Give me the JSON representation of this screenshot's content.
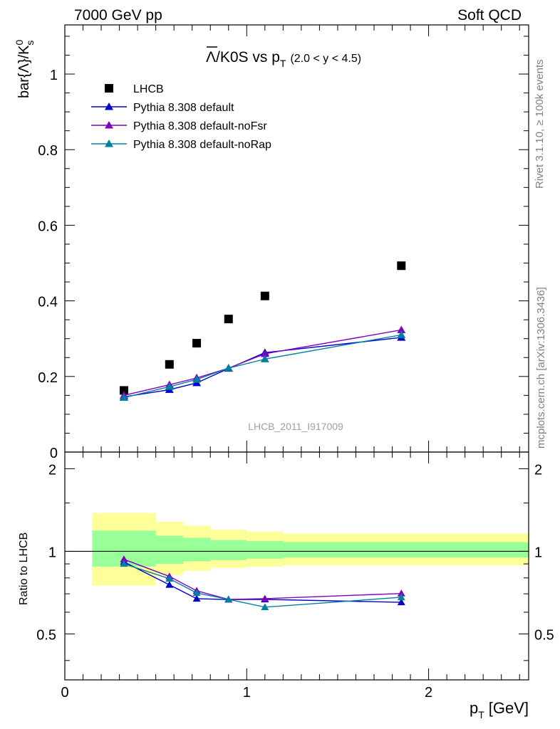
{
  "header": {
    "energy_label": "7000 GeV pp",
    "process_label": "Soft QCD",
    "rivet_label": "Rivet 3.1.10, ≥ 100k events",
    "mcplots_label": "mcplots.cern.ch [arXiv:1306.3436]",
    "analysis_label": "LHCB_2011_I917009"
  },
  "chart_data": [
    {
      "type": "scatter",
      "title": {
        "main": "Λ/K0S vs p",
        "sub": "T",
        "cut": "(2.0 < y < 4.5)"
      },
      "ylabel": "bar{Λ}/K⁰s",
      "ylabel_parts": {
        "main": "bar{Λ}/K",
        "sup": "0",
        "sub": "s"
      },
      "xlim": [
        0,
        2.55
      ],
      "ylim": [
        0,
        1.13
      ],
      "x_ticks": [
        0,
        1,
        2
      ],
      "y_ticks": [
        0,
        0.2,
        0.4,
        0.6,
        0.8,
        1
      ],
      "y_tick_labels": [
        "0",
        "0.2",
        "0.4",
        "0.6",
        "0.8",
        "1"
      ],
      "legend_position": "top-left",
      "grid": false,
      "series": [
        {
          "name": "LHCB",
          "marker": "square",
          "color": "#000000",
          "x": [
            0.325,
            0.575,
            0.725,
            0.9,
            1.1,
            1.85
          ],
          "y": [
            0.163,
            0.232,
            0.288,
            0.352,
            0.413,
            0.493
          ]
        },
        {
          "name": "Pythia 8.308 default",
          "marker": "triangle",
          "color": "#0000cc",
          "x": [
            0.325,
            0.575,
            0.725,
            0.9,
            1.1,
            1.85
          ],
          "y": [
            0.146,
            0.165,
            0.183,
            0.221,
            0.263,
            0.303
          ]
        },
        {
          "name": "Pythia 8.308 default-noFsr",
          "marker": "triangle",
          "color": "#7f00bf",
          "x": [
            0.325,
            0.575,
            0.725,
            0.9,
            1.1,
            1.85
          ],
          "y": [
            0.15,
            0.178,
            0.196,
            0.222,
            0.26,
            0.323
          ]
        },
        {
          "name": "Pythia 8.308 default-noRap",
          "marker": "triangle",
          "color": "#0080a0",
          "x": [
            0.325,
            0.575,
            0.725,
            0.9,
            1.1,
            1.85
          ],
          "y": [
            0.144,
            0.173,
            0.192,
            0.222,
            0.246,
            0.31
          ]
        }
      ]
    },
    {
      "type": "line",
      "ylabel": "Ratio to LHCB",
      "xlabel_main": "p",
      "xlabel_sub": "T",
      "xlabel_unit": "[GeV]",
      "xlim": [
        0,
        2.55
      ],
      "ylim": [
        0.34,
        2.3
      ],
      "x_ticks": [
        0,
        1,
        2
      ],
      "y_ticks": [
        0.5,
        1,
        2
      ],
      "y_tick_labels": [
        "0.5",
        "1",
        "2"
      ],
      "reference_line": 1,
      "bands": {
        "bin_edges": [
          0.15,
          0.5,
          0.65,
          0.8,
          1.0,
          1.2,
          2.55
        ],
        "inner": [
          [
            0.88,
            1.19
          ],
          [
            0.9,
            1.14
          ],
          [
            0.92,
            1.12
          ],
          [
            0.93,
            1.1
          ],
          [
            0.94,
            1.09
          ],
          [
            0.95,
            1.08
          ]
        ],
        "outer": [
          [
            0.75,
            1.38
          ],
          [
            0.82,
            1.28
          ],
          [
            0.85,
            1.24
          ],
          [
            0.87,
            1.2
          ],
          [
            0.88,
            1.18
          ],
          [
            0.89,
            1.16
          ]
        ],
        "inner_color": "#99ff99",
        "outer_color": "#ffff99"
      },
      "series": [
        {
          "name": "Pythia 8.308 default",
          "color": "#0000cc",
          "x": [
            0.325,
            0.575,
            0.725,
            0.9,
            1.1,
            1.85
          ],
          "y": [
            0.915,
            0.755,
            0.672,
            0.667,
            0.668,
            0.652
          ]
        },
        {
          "name": "Pythia 8.308 default-noFsr",
          "color": "#7f00bf",
          "x": [
            0.325,
            0.575,
            0.725,
            0.9,
            1.1,
            1.85
          ],
          "y": [
            0.935,
            0.81,
            0.718,
            0.668,
            0.672,
            0.702
          ]
        },
        {
          "name": "Pythia 8.308 default-noRap",
          "color": "#0080a0",
          "x": [
            0.325,
            0.575,
            0.725,
            0.9,
            1.1,
            1.85
          ],
          "y": [
            0.9,
            0.795,
            0.705,
            0.668,
            0.626,
            0.68
          ]
        }
      ]
    }
  ]
}
